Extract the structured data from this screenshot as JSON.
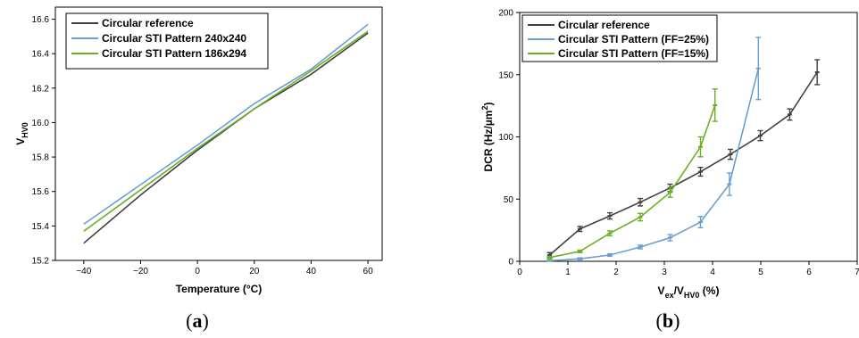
{
  "colors": {
    "reference": "#404040",
    "sti_a": "#6c9fd0",
    "sti_b": "#6ab023"
  },
  "captions": {
    "a": {
      "open": "(",
      "letter": "a",
      "close": ")"
    },
    "b": {
      "open": "(",
      "letter": "b",
      "close": ")"
    }
  },
  "chart_data": [
    {
      "type": "line",
      "xlabel": "Temperature (°C)",
      "ylabel_main": "V",
      "ylabel_sub": "HV0",
      "xlim": [
        -50,
        65
      ],
      "ylim": [
        15.2,
        16.67
      ],
      "xticks": [
        -40,
        -20,
        0,
        20,
        40,
        60
      ],
      "xtick_labels": [
        "−40",
        "−20",
        "0",
        "20",
        "40",
        "60"
      ],
      "yticks": [
        15.2,
        15.4,
        15.6,
        15.8,
        16.0,
        16.2,
        16.4,
        16.6
      ],
      "ytick_labels": [
        "15.2",
        "15.4",
        "15.6",
        "15.8",
        "16.0",
        "16.2",
        "16.4",
        "16.6"
      ],
      "legend_position": "top-left",
      "series": [
        {
          "name": "Circular reference",
          "color": "#404040",
          "x": [
            -40,
            -20,
            0,
            20,
            40,
            60
          ],
          "y": [
            15.3,
            15.58,
            15.84,
            16.08,
            16.28,
            16.52
          ]
        },
        {
          "name": "Circular STI Pattern 240x240",
          "color": "#6c9fd0",
          "x": [
            -40,
            -20,
            0,
            20,
            40,
            60
          ],
          "y": [
            15.41,
            15.64,
            15.87,
            16.11,
            16.31,
            16.57
          ]
        },
        {
          "name": "Circular STI Pattern 186x294",
          "color": "#6ab023",
          "x": [
            -40,
            -20,
            0,
            20,
            40,
            60
          ],
          "y": [
            15.37,
            15.61,
            15.85,
            16.08,
            16.3,
            16.53
          ]
        }
      ]
    },
    {
      "type": "line",
      "xlabel_main": "V",
      "xlabel_sub1": "ex",
      "xlabel_mid": "/V",
      "xlabel_sub2": "HV0",
      "xlabel_tail": " (%)",
      "ylabel_main": "DCR (Hz/µm",
      "ylabel_sup": "2",
      "ylabel_tail": ")",
      "xlim": [
        0,
        7
      ],
      "ylim": [
        0,
        200
      ],
      "xticks": [
        0,
        1,
        2,
        3,
        4,
        5,
        6,
        7
      ],
      "xtick_labels": [
        "0",
        "1",
        "2",
        "3",
        "4",
        "5",
        "6",
        "7"
      ],
      "yticks": [
        0,
        50,
        100,
        150,
        200
      ],
      "ytick_labels": [
        "0",
        "50",
        "100",
        "150",
        "200"
      ],
      "legend_position": "top-left",
      "series": [
        {
          "name": "Circular reference",
          "color": "#404040",
          "x": [
            0.62,
            1.25,
            1.87,
            2.5,
            3.12,
            3.75,
            4.37,
            4.99,
            5.6,
            6.17
          ],
          "y": [
            5,
            26,
            36.5,
            47.5,
            59,
            72,
            86,
            101,
            118,
            152
          ],
          "err": [
            2,
            2,
            2.5,
            3,
            3,
            3.5,
            4,
            4,
            4.5,
            10
          ]
        },
        {
          "name": "Circular STI Pattern (FF=25%)",
          "color": "#6c9fd0",
          "x": [
            0.62,
            1.25,
            1.87,
            2.5,
            3.12,
            3.75,
            4.35,
            4.95
          ],
          "y": [
            0.5,
            2,
            5,
            11.5,
            19,
            31.5,
            62,
            155
          ],
          "err": [
            0.5,
            0.8,
            1,
            1.5,
            2.5,
            4.5,
            9,
            25
          ]
        },
        {
          "name": "Circular STI Pattern (FF=15%)",
          "color": "#6ab023",
          "x": [
            0.62,
            1.25,
            1.87,
            2.5,
            3.12,
            3.75,
            4.05
          ],
          "y": [
            3,
            8,
            22.5,
            35.5,
            55.5,
            92,
            125.5
          ],
          "err": [
            1,
            1,
            2,
            3,
            4,
            8,
            13
          ]
        }
      ]
    }
  ]
}
